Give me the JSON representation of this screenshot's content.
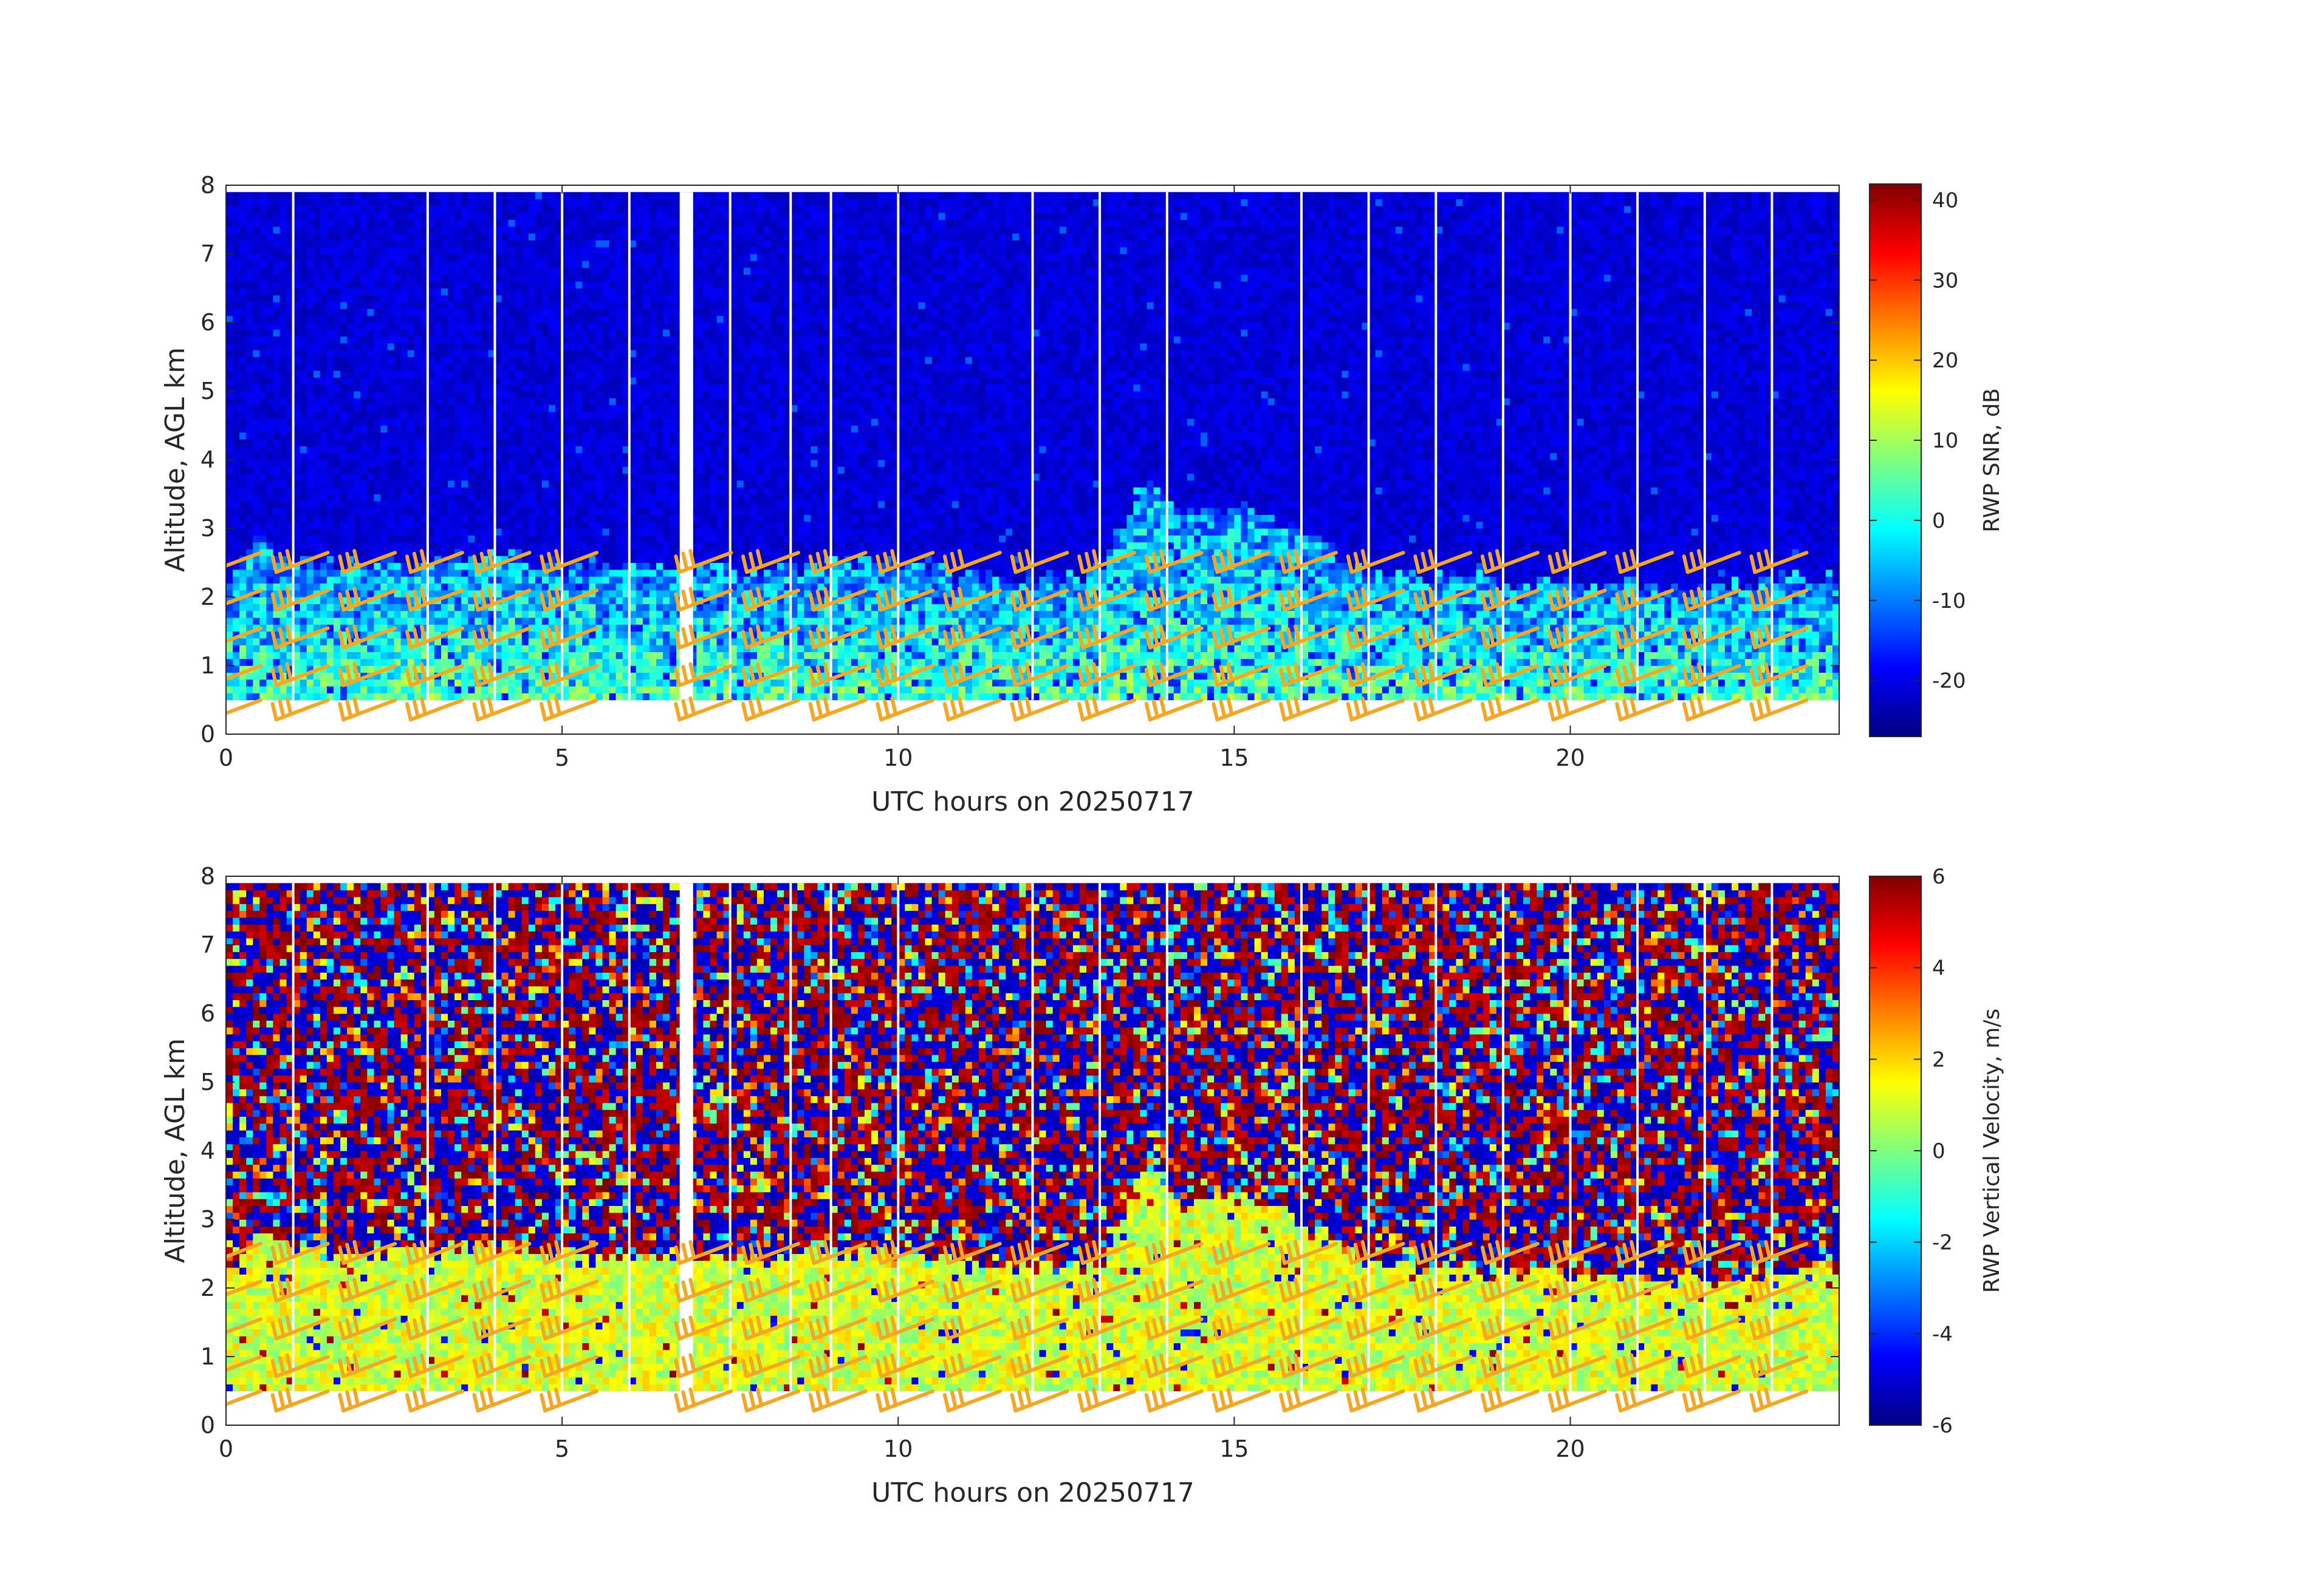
{
  "chart_data": [
    {
      "type": "heatmap",
      "name": "snr",
      "xlabel": "UTC hours on 20250717",
      "ylabel": "Altitude, AGL km",
      "xlim": [
        0,
        24
      ],
      "ylim": [
        0,
        8
      ],
      "xticks": [
        0,
        5,
        10,
        15,
        20
      ],
      "yticks": [
        0,
        1,
        2,
        3,
        4,
        5,
        6,
        7,
        8
      ],
      "data_altitude_range_km": [
        0.5,
        7.9
      ],
      "colorbar": {
        "label": "RWP SNR, dB",
        "range": [
          -27,
          42
        ],
        "ticks": [
          -20,
          -10,
          0,
          10,
          20,
          30,
          40
        ],
        "colormap": "jet"
      },
      "signal_top_km_by_hour": [
        [
          0,
          2.2
        ],
        [
          0.5,
          2.8
        ],
        [
          1,
          2.5
        ],
        [
          2,
          2.4
        ],
        [
          3,
          2.5
        ],
        [
          4,
          2.6
        ],
        [
          5,
          2.4
        ],
        [
          6,
          2.4
        ],
        [
          7,
          2.4
        ],
        [
          8,
          2.3
        ],
        [
          9,
          2.5
        ],
        [
          10,
          2.4
        ],
        [
          11,
          2.3
        ],
        [
          12,
          2.2
        ],
        [
          13,
          2.3
        ],
        [
          13.7,
          3.8
        ],
        [
          14.2,
          3.2
        ],
        [
          15,
          3.3
        ],
        [
          16,
          2.9
        ],
        [
          17,
          2.3
        ],
        [
          18,
          2.2
        ],
        [
          19,
          2.2
        ],
        [
          20,
          2.1
        ],
        [
          21,
          2.1
        ],
        [
          22,
          2.1
        ],
        [
          23,
          2.2
        ],
        [
          24,
          2.2
        ]
      ],
      "gap_hours": [
        1,
        3,
        4,
        5,
        6,
        7.5,
        8.4,
        9,
        10,
        12,
        13,
        14,
        16,
        17,
        18,
        19,
        20,
        21,
        22,
        23
      ]
    },
    {
      "type": "heatmap",
      "name": "vertical-velocity",
      "xlabel": "UTC hours on 20250717",
      "ylabel": "Altitude, AGL km",
      "xlim": [
        0,
        24
      ],
      "ylim": [
        0,
        8
      ],
      "xticks": [
        0,
        5,
        10,
        15,
        20
      ],
      "yticks": [
        0,
        1,
        2,
        3,
        4,
        5,
        6,
        7,
        8
      ],
      "data_altitude_range_km": [
        0.5,
        7.9
      ],
      "colorbar": {
        "label": "RWP Vertical Velocity, m/s",
        "range": [
          -6,
          6
        ],
        "ticks": [
          -6,
          -4,
          -2,
          0,
          2,
          4,
          6
        ],
        "colormap": "jet"
      },
      "low_layer_velocity_ms": 1.0,
      "gap_hours": [
        1,
        3,
        4,
        5,
        6,
        7.5,
        8.4,
        9,
        10,
        12,
        13,
        14,
        16,
        17,
        18,
        19,
        20,
        21,
        22,
        23
      ]
    }
  ],
  "wind_barbs": {
    "color": "#f5a623",
    "altitudes_km": [
      0.3,
      0.8,
      1.35,
      1.9,
      2.45
    ],
    "hours": [
      0,
      1,
      2,
      3,
      4,
      5,
      7,
      8,
      9,
      10,
      11,
      12,
      13,
      14,
      15,
      16,
      17,
      18,
      19,
      20,
      21,
      22,
      23
    ]
  }
}
